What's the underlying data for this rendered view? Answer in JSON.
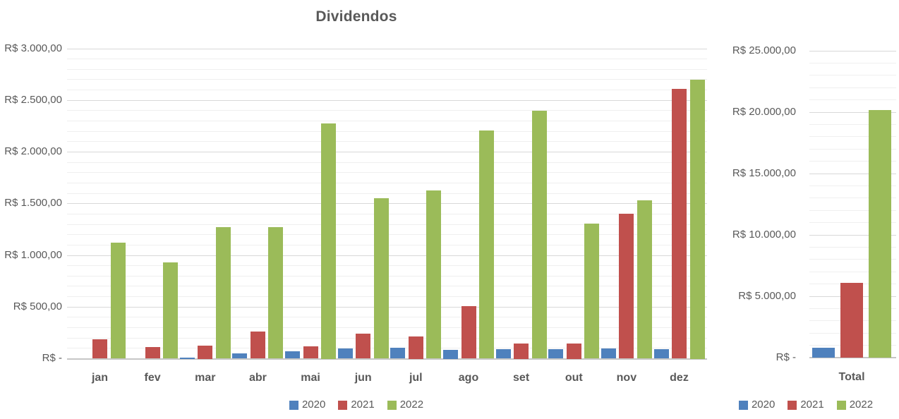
{
  "colors": {
    "series_2020": "#4F81BD",
    "series_2021": "#C0504D",
    "series_2022": "#9BBB59",
    "text": "#595959",
    "major_grid": "#D8D8D8",
    "minor_grid": "#EFEFEF",
    "axis_line": "#C6C6C6"
  },
  "chart_data": [
    {
      "type": "bar",
      "title": "Dividendos",
      "xlabel": "",
      "ylabel": "",
      "grid": true,
      "legend_position": "bottom",
      "legend": [
        "2020",
        "2021",
        "2022"
      ],
      "categories": [
        "jan",
        "fev",
        "mar",
        "abr",
        "mai",
        "jun",
        "jul",
        "ago",
        "set",
        "out",
        "nov",
        "dez"
      ],
      "series": [
        {
          "name": "2020",
          "color": "#4F81BD",
          "values": [
            0,
            0,
            10,
            50,
            70,
            100,
            105,
            85,
            90,
            95,
            100,
            90
          ]
        },
        {
          "name": "2021",
          "color": "#C0504D",
          "values": [
            190,
            110,
            130,
            260,
            120,
            240,
            215,
            510,
            150,
            150,
            1400,
            2610
          ]
        },
        {
          "name": "2022",
          "color": "#9BBB59",
          "values": [
            1120,
            930,
            1270,
            1270,
            2280,
            1550,
            1630,
            2210,
            2400,
            1310,
            1530,
            2700
          ]
        }
      ],
      "ylim": [
        0,
        3000
      ],
      "y_major_step": 500,
      "y_minor_step": 100,
      "y_tick_values": [
        0,
        500,
        1000,
        1500,
        2000,
        2500,
        3000
      ],
      "y_tick_labels": [
        "R$ -",
        "R$ 500,00",
        "R$ 1.000,00",
        "R$ 1.500,00",
        "R$ 2.000,00",
        "R$ 2.500,00",
        "R$ 3.000,00"
      ]
    },
    {
      "type": "bar",
      "title": "",
      "xlabel": "",
      "ylabel": "",
      "grid": true,
      "legend_position": "bottom",
      "legend": [
        "2020",
        "2021",
        "2022"
      ],
      "categories": [
        "Total"
      ],
      "series": [
        {
          "name": "2020",
          "color": "#4F81BD",
          "values": [
            800
          ]
        },
        {
          "name": "2021",
          "color": "#C0504D",
          "values": [
            6100
          ]
        },
        {
          "name": "2022",
          "color": "#9BBB59",
          "values": [
            20200
          ]
        }
      ],
      "ylim": [
        0,
        25000
      ],
      "y_major_step": 5000,
      "y_minor_step": 1000,
      "y_tick_values": [
        0,
        5000,
        10000,
        15000,
        20000,
        25000
      ],
      "y_tick_labels": [
        "R$ -",
        "R$ 5.000,00",
        "R$ 10.000,00",
        "R$ 15.000,00",
        "R$ 20.000,00",
        "R$ 25.000,00"
      ]
    }
  ]
}
